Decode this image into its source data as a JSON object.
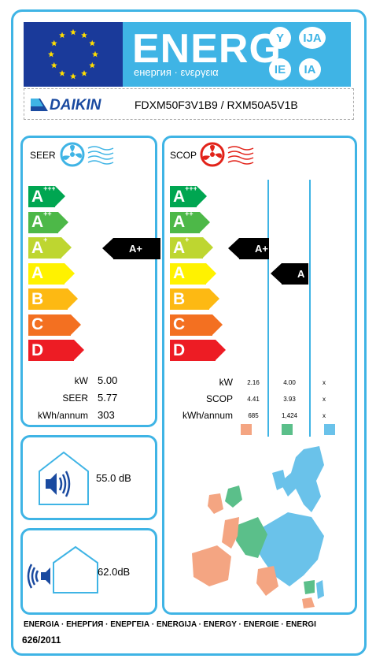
{
  "header": {
    "title": "ENERG",
    "subtitle": "енергия · ενεργεια",
    "languages": [
      "Y",
      "IJA",
      "IE",
      "IA"
    ]
  },
  "brand": {
    "name": "DAIKIN",
    "model": "FDXM50F3V1B9 / RXM50A5V1B"
  },
  "classes": [
    "A+++",
    "A++",
    "A+",
    "A",
    "B",
    "C",
    "D"
  ],
  "colors": [
    "#00a651",
    "#4db848",
    "#bed630",
    "#fff200",
    "#fdb913",
    "#f37021",
    "#ed1c24"
  ],
  "seer": {
    "title": "SEER",
    "rating": "A+",
    "rating_index": 2,
    "rows": [
      {
        "label": "kW",
        "value": "5.00"
      },
      {
        "label": "SEER",
        "value": "5.77"
      },
      {
        "label": "kWh/annum",
        "value": "303"
      }
    ]
  },
  "scop": {
    "title": "SCOP",
    "ratings": [
      {
        "label": "A+",
        "index": 2
      },
      {
        "label": "A",
        "index": 3
      }
    ],
    "rows": [
      {
        "label": "kW",
        "values": [
          "2.16",
          "4.00",
          "x"
        ]
      },
      {
        "label": "SCOP",
        "values": [
          "4.41",
          "3.93",
          "x"
        ]
      },
      {
        "label": "kWh/annum",
        "values": [
          "685",
          "1,424",
          "x"
        ]
      }
    ],
    "zone_colors": [
      "#f4a582",
      "#5bbf8a",
      "#6ac2ea"
    ]
  },
  "noise": {
    "indoor": {
      "value": "55.0",
      "unit": "dB"
    },
    "outdoor": {
      "value": "62.0",
      "unit": "dB"
    }
  },
  "footer": {
    "languages": "ENERGIA · ЕНЕРГИЯ · ΕΝΕΡΓΕΙΑ · ENERGIJA · ENERGY · ENERGIE · ENERGI",
    "regulation": "626/2011"
  },
  "icons": [
    "eu-flag-icon",
    "fan-cool-icon",
    "fan-heat-icon",
    "speaker-indoor-icon",
    "speaker-outdoor-icon",
    "europe-map-icon"
  ]
}
